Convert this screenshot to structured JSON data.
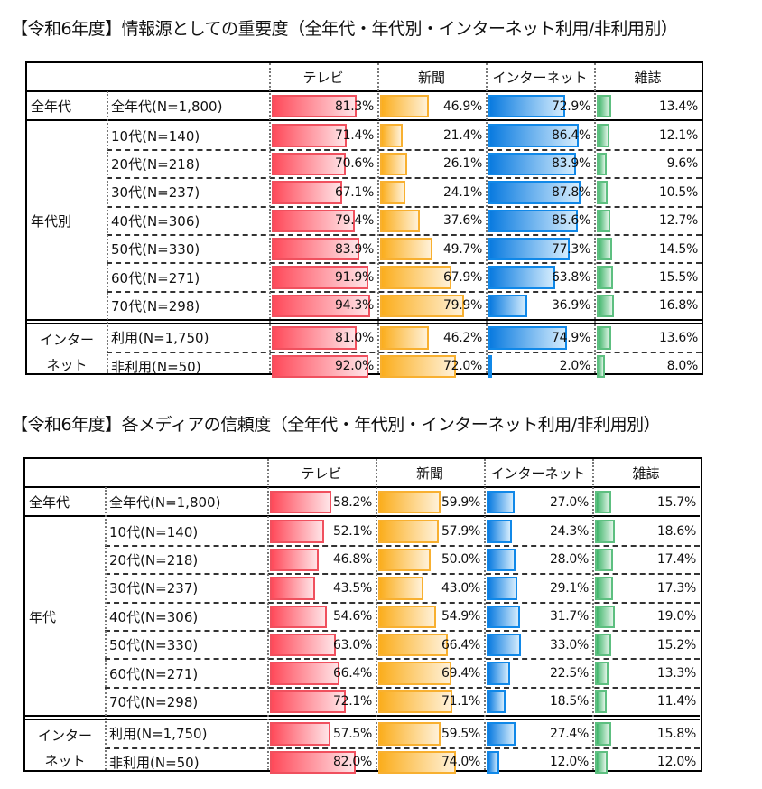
{
  "colors": {
    "tv": {
      "fill_start": "#ff4a5a",
      "fill_end": "#ffe4e7",
      "border": "#f0505e"
    },
    "newspaper": {
      "fill_start": "#fbae1e",
      "fill_end": "#fff1d8",
      "border": "#f8b030"
    },
    "internet": {
      "fill_start": "#0a7be0",
      "fill_end": "#d4ecfd",
      "border": "#1088e8"
    },
    "magazine": {
      "fill_start": "#3fb56a",
      "fill_end": "#e2f4e8",
      "border": "#5dbf80"
    }
  },
  "chart_data": [
    {
      "type": "table",
      "title": "【令和6年度】情報源としての重要度（全年代・年代別・インターネット利用/非利用別）",
      "columns": [
        "テレビ",
        "新聞",
        "インターネット",
        "雑誌"
      ],
      "unit": "%",
      "groups": [
        {
          "name": "全年代",
          "rows": [
            {
              "label": "全年代(N=1,800)",
              "values": [
                81.3,
                46.9,
                72.9,
                13.4
              ]
            }
          ]
        },
        {
          "name": "年代別",
          "rows": [
            {
              "label": "10代(N=140)",
              "values": [
                71.4,
                21.4,
                86.4,
                12.1
              ]
            },
            {
              "label": "20代(N=218)",
              "values": [
                70.6,
                26.1,
                83.9,
                9.6
              ]
            },
            {
              "label": "30代(N=237)",
              "values": [
                67.1,
                24.1,
                87.8,
                10.5
              ]
            },
            {
              "label": "40代(N=306)",
              "values": [
                79.4,
                37.6,
                85.6,
                12.7
              ]
            },
            {
              "label": "50代(N=330)",
              "values": [
                83.9,
                49.7,
                77.3,
                14.5
              ]
            },
            {
              "label": "60代(N=271)",
              "values": [
                91.9,
                67.9,
                63.8,
                15.5
              ]
            },
            {
              "label": "70代(N=298)",
              "values": [
                94.3,
                79.9,
                36.9,
                16.8
              ]
            }
          ]
        },
        {
          "name": "インター\nネット",
          "rows": [
            {
              "label": "利用(N=1,750)",
              "values": [
                81.0,
                46.2,
                74.9,
                13.6
              ]
            },
            {
              "label": "非利用(N=50)",
              "values": [
                92.0,
                72.0,
                2.0,
                8.0
              ]
            }
          ]
        }
      ]
    },
    {
      "type": "table",
      "title": "【令和6年度】各メディアの信頼度（全年代・年代別・インターネット利用/非利用別）",
      "columns": [
        "テレビ",
        "新聞",
        "インターネット",
        "雑誌"
      ],
      "unit": "%",
      "groups": [
        {
          "name": "全年代",
          "rows": [
            {
              "label": "全年代(N=1,800)",
              "values": [
                58.2,
                59.9,
                27.0,
                15.7
              ]
            }
          ]
        },
        {
          "name": "年代",
          "rows": [
            {
              "label": "10代(N=140)",
              "values": [
                52.1,
                57.9,
                24.3,
                18.6
              ]
            },
            {
              "label": "20代(N=218)",
              "values": [
                46.8,
                50.0,
                28.0,
                17.4
              ]
            },
            {
              "label": "30代(N=237)",
              "values": [
                43.5,
                43.0,
                29.1,
                17.3
              ]
            },
            {
              "label": "40代(N=306)",
              "values": [
                54.6,
                54.9,
                31.7,
                19.0
              ]
            },
            {
              "label": "50代(N=330)",
              "values": [
                63.0,
                66.4,
                33.0,
                15.2
              ]
            },
            {
              "label": "60代(N=271)",
              "values": [
                66.4,
                69.4,
                22.5,
                13.3
              ]
            },
            {
              "label": "70代(N=298)",
              "values": [
                72.1,
                71.1,
                18.5,
                11.4
              ]
            }
          ]
        },
        {
          "name": "インター\nネット",
          "rows": [
            {
              "label": "利用(N=1,750)",
              "values": [
                57.5,
                59.5,
                27.4,
                15.8
              ]
            },
            {
              "label": "非利用(N=50)",
              "values": [
                82.0,
                74.0,
                12.0,
                12.0
              ]
            }
          ]
        }
      ]
    }
  ]
}
